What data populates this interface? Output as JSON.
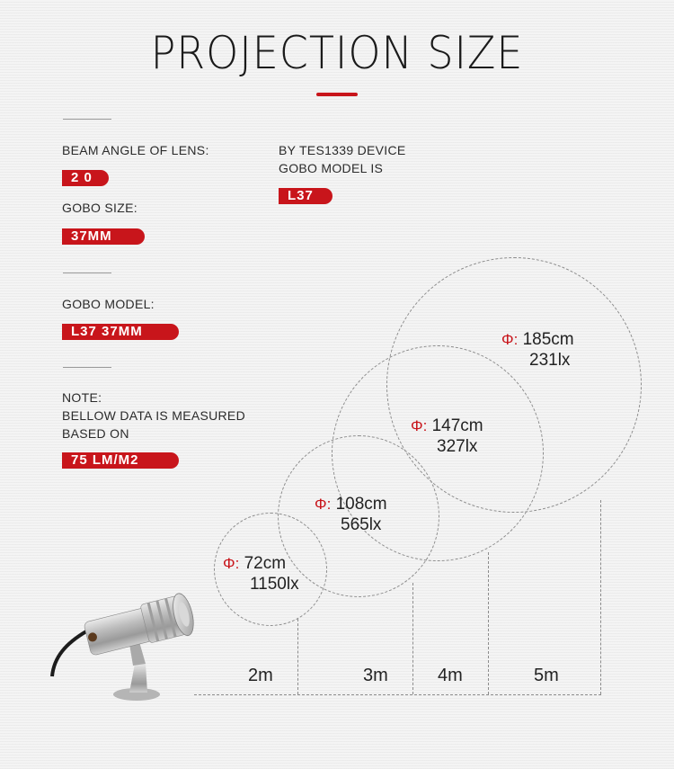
{
  "title": "PROJECTION SIZE",
  "colors": {
    "accent": "#c8151b",
    "text": "#222222",
    "dashed": "#8c8c8c"
  },
  "specs": {
    "beam_label": "BEAM ANGLE OF LENS:",
    "beam_value": "2 0",
    "gobo_size_label": "GOBO SIZE:",
    "gobo_size_value": "37MM",
    "tes_line1": "BY TES1339 DEVICE",
    "tes_line2": "GOBO MODEL IS",
    "tes_value": "L37",
    "gobo_model_label": "GOBO MODEL:",
    "gobo_model_value": "L37 37MM",
    "note_line1": "NOTE:",
    "note_line2": "BELLOW DATA IS MEASURED",
    "note_line3": "BASED ON",
    "note_value": "75 LM/M2"
  },
  "projections": [
    {
      "phi": "Φ:",
      "diameter": "72cm",
      "lux": "1150lx",
      "distance": "2m"
    },
    {
      "phi": "Φ:",
      "diameter": "108cm",
      "lux": "565lx",
      "distance": "3m"
    },
    {
      "phi": "Φ:",
      "diameter": "147cm",
      "lux": "327lx",
      "distance": "4m"
    },
    {
      "phi": "Φ:",
      "diameter": "185cm",
      "lux": "231lx",
      "distance": "5m"
    }
  ],
  "illustration": {
    "subject": "projector-lamp-icon"
  }
}
